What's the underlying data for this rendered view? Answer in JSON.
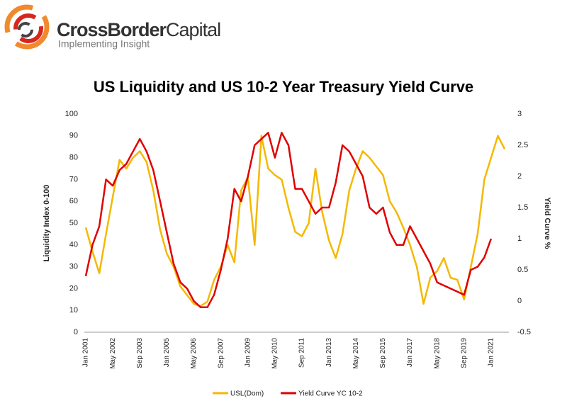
{
  "header": {
    "brand_bold": "CrossBorder",
    "brand_light": "Capital",
    "tagline": "Implementing Insight"
  },
  "chart_data": {
    "type": "line",
    "title": "US Liquidity and US 10-2 Year Treasury Yield Curve",
    "ylabel": "Liquidity Index 0-100",
    "y2label": "Yield Curve %",
    "categories": [
      "Jan 2001",
      null,
      null,
      null,
      "May 2002",
      null,
      null,
      null,
      "Sep 2003",
      null,
      null,
      null,
      "Jan 2005",
      null,
      null,
      null,
      "May 2006",
      null,
      null,
      null,
      "Sep 2007",
      null,
      null,
      null,
      "Jan 2009",
      null,
      null,
      null,
      "May 2010",
      null,
      null,
      null,
      "Sep 2011",
      null,
      null,
      null,
      "Jan 2013",
      null,
      null,
      null,
      "May 2014",
      null,
      null,
      null,
      "Sep 2015",
      null,
      null,
      null,
      "Jan 2017",
      null,
      null,
      null,
      "May 2018",
      null,
      null,
      null,
      "Sep 2019",
      null,
      null,
      null,
      "Jan 2021",
      null,
      null
    ],
    "ylim": [
      0,
      100
    ],
    "yticks": [
      0,
      10,
      20,
      30,
      40,
      50,
      60,
      70,
      80,
      90,
      100
    ],
    "y2lim": [
      -0.5,
      3
    ],
    "y2ticks": [
      -0.5,
      0,
      0.5,
      1,
      1.5,
      2,
      2.5,
      3
    ],
    "legend": "bottom",
    "series": [
      {
        "name": "USL(Dom)",
        "color": "#f5b800",
        "values": [
          48,
          37,
          27,
          45,
          62,
          79,
          75,
          80,
          83,
          78,
          65,
          47,
          36,
          30,
          21,
          17,
          13,
          12,
          14,
          24,
          30,
          40,
          32,
          65,
          71,
          40,
          90,
          75,
          72,
          70,
          57,
          46,
          44,
          50,
          75,
          55,
          42,
          34,
          45,
          65,
          75,
          83,
          80,
          76,
          72,
          60,
          55,
          48,
          40,
          30,
          13,
          25,
          28,
          34,
          25,
          24,
          15,
          30,
          45,
          70,
          80,
          90,
          84
        ]
      },
      {
        "name": "Yield Curve YC 10-2",
        "color": "#e00000",
        "axis": "y2",
        "values": [
          0.4,
          0.9,
          1.2,
          1.95,
          1.85,
          2.1,
          2.2,
          2.4,
          2.6,
          2.4,
          2.1,
          1.6,
          1.1,
          0.6,
          0.3,
          0.2,
          0.0,
          -0.1,
          -0.1,
          0.1,
          0.5,
          1.0,
          1.8,
          1.6,
          2.0,
          2.5,
          2.6,
          2.7,
          2.3,
          2.7,
          2.5,
          1.8,
          1.8,
          1.6,
          1.4,
          1.5,
          1.5,
          1.9,
          2.5,
          2.4,
          2.2,
          2.0,
          1.5,
          1.4,
          1.5,
          1.1,
          0.9,
          0.9,
          1.2,
          1.0,
          0.8,
          0.6,
          0.3,
          0.25,
          0.2,
          0.15,
          0.1,
          0.5,
          0.55,
          0.7,
          1.0,
          null,
          null
        ]
      }
    ]
  }
}
